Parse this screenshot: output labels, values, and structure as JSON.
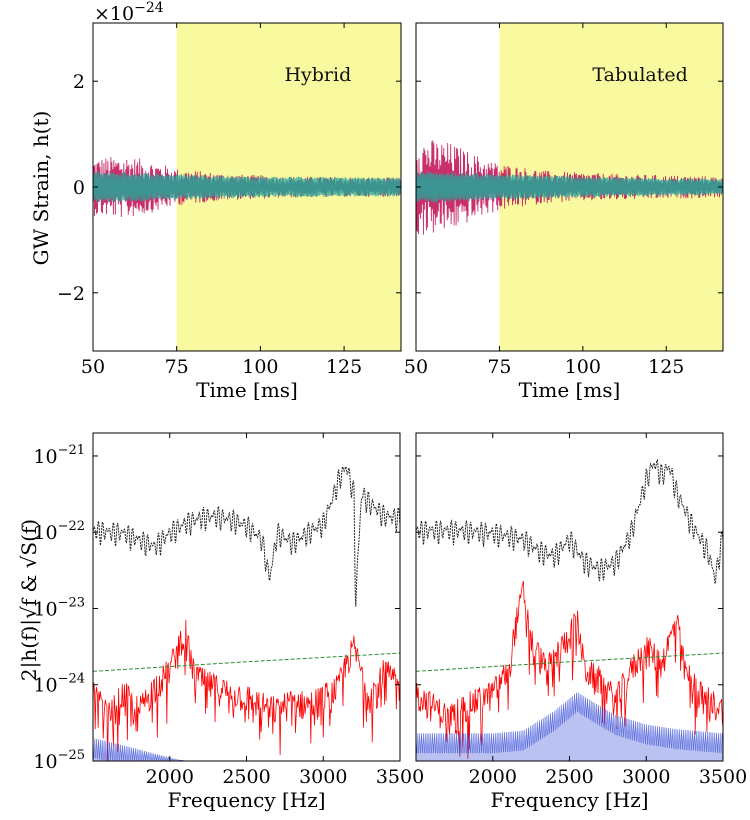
{
  "chart_data": [
    {
      "type": "line",
      "panel": "top-left",
      "annotation": "Hybrid",
      "xlabel": "Time [ms]",
      "ylabel": "GW Strain, h(t)",
      "scale_label": "×10",
      "scale_exponent": "−24",
      "xlim": [
        50,
        142
      ],
      "ylim": [
        -3.1,
        3.1
      ],
      "xticks": [
        {
          "value": 50,
          "label": "50"
        },
        {
          "value": 75,
          "label": "75"
        },
        {
          "value": 100,
          "label": "100"
        },
        {
          "value": 125,
          "label": "125"
        }
      ],
      "yticks": [
        {
          "value": -2,
          "label": "−2"
        },
        {
          "value": 0,
          "label": "0"
        },
        {
          "value": 2,
          "label": "2"
        }
      ],
      "shaded_region": {
        "x_start": 75,
        "x_end": 142,
        "color": "#f9f9a0"
      },
      "series": [
        {
          "color": "#c2185b",
          "envelope": [
            [
              50,
              0.55
            ],
            [
              60,
              0.6
            ],
            [
              70,
              0.45
            ],
            [
              75,
              0.35
            ],
            [
              90,
              0.25
            ],
            [
              110,
              0.2
            ],
            [
              142,
              0.18
            ]
          ]
        },
        {
          "color": "#26a69a",
          "envelope": [
            [
              50,
              0.3
            ],
            [
              75,
              0.25
            ],
            [
              100,
              0.2
            ],
            [
              142,
              0.18
            ]
          ]
        }
      ]
    },
    {
      "type": "line",
      "panel": "top-right",
      "annotation": "Tabulated",
      "xlabel": "Time [ms]",
      "xlim": [
        50,
        142
      ],
      "ylim": [
        -3.1,
        3.1
      ],
      "xticks": [
        {
          "value": 50,
          "label": "50"
        },
        {
          "value": 75,
          "label": "75"
        },
        {
          "value": 100,
          "label": "100"
        },
        {
          "value": 125,
          "label": "125"
        }
      ],
      "shaded_region": {
        "x_start": 75,
        "x_end": 142,
        "color": "#f9f9a0"
      },
      "series": [
        {
          "color": "#c2185b",
          "envelope": [
            [
              50,
              0.95
            ],
            [
              60,
              0.85
            ],
            [
              70,
              0.55
            ],
            [
              75,
              0.45
            ],
            [
              90,
              0.3
            ],
            [
              110,
              0.25
            ],
            [
              142,
              0.2
            ]
          ]
        },
        {
          "color": "#26a69a",
          "envelope": [
            [
              50,
              0.3
            ],
            [
              75,
              0.25
            ],
            [
              100,
              0.2
            ],
            [
              142,
              0.15
            ]
          ]
        }
      ]
    },
    {
      "type": "line",
      "panel": "bottom-left",
      "xlabel": "Frequency [Hz]",
      "ylabel": "2|h(f)|√f & √S(f)",
      "yscale": "log",
      "xlim": [
        1500,
        3500
      ],
      "ylim": [
        1e-25,
        2e-21
      ],
      "xticks": [
        {
          "value": 2000,
          "label": "2000"
        },
        {
          "value": 2500,
          "label": "2500"
        },
        {
          "value": 3000,
          "label": "3000"
        },
        {
          "value": 3500,
          "label": "3500"
        }
      ],
      "yticks": [
        {
          "value": 1e-25,
          "label": "10",
          "exp": "−25"
        },
        {
          "value": 1e-24,
          "label": "10",
          "exp": "−24"
        },
        {
          "value": 1e-23,
          "label": "10",
          "exp": "−23"
        },
        {
          "value": 1e-22,
          "label": "10",
          "exp": "−22"
        },
        {
          "value": 1e-21,
          "label": "10",
          "exp": "−21"
        }
      ],
      "series": [
        {
          "style": "dotted",
          "color": "#222222",
          "points": [
            [
              1500,
              1.3e-22
            ],
            [
              1700,
              1.2e-22
            ],
            [
              1900,
              8e-23
            ],
            [
              2000,
              1.2e-22
            ],
            [
              2100,
              1.6e-22
            ],
            [
              2200,
              1.9e-22
            ],
            [
              2300,
              2e-22
            ],
            [
              2400,
              1.8e-22
            ],
            [
              2500,
              1.5e-22
            ],
            [
              2600,
              1e-22
            ],
            [
              2650,
              3e-23
            ],
            [
              2700,
              1.2e-22
            ],
            [
              2800,
              9e-23
            ],
            [
              2900,
              1.2e-22
            ],
            [
              3000,
              1.6e-22
            ],
            [
              3050,
              3e-22
            ],
            [
              3100,
              6e-22
            ],
            [
              3150,
              9e-22
            ],
            [
              3200,
              4e-22
            ],
            [
              3210,
              1.5e-23
            ],
            [
              3250,
              4e-22
            ],
            [
              3300,
              3e-22
            ],
            [
              3400,
              2e-22
            ],
            [
              3500,
              1.9e-22
            ]
          ]
        },
        {
          "style": "solid",
          "color": "#ff0000",
          "points": [
            [
              1500,
              1e-24
            ],
            [
              1600,
              5e-25
            ],
            [
              1700,
              1e-24
            ],
            [
              1800,
              6e-25
            ],
            [
              1900,
              1.2e-24
            ],
            [
              2000,
              2e-24
            ],
            [
              2050,
              4e-24
            ],
            [
              2100,
              7e-24
            ],
            [
              2150,
              2e-24
            ],
            [
              2200,
              1.5e-24
            ],
            [
              2300,
              1.2e-24
            ],
            [
              2400,
              1e-24
            ],
            [
              2500,
              9e-25
            ],
            [
              2600,
              7e-25
            ],
            [
              2700,
              6e-25
            ],
            [
              2800,
              8e-25
            ],
            [
              2900,
              7e-25
            ],
            [
              3000,
              9e-25
            ],
            [
              3100,
              1.2e-24
            ],
            [
              3150,
              2.5e-24
            ],
            [
              3200,
              4e-24
            ],
            [
              3250,
              1.8e-24
            ],
            [
              3300,
              9e-25
            ],
            [
              3400,
              2e-24
            ],
            [
              3500,
              1.2e-24
            ]
          ]
        },
        {
          "style": "dashed",
          "color": "#2e8b2e",
          "points": [
            [
              1500,
              1.5e-24
            ],
            [
              2500,
              2e-24
            ],
            [
              3500,
              2.6e-24
            ]
          ]
        },
        {
          "style": "fill",
          "color": "#3a4fd8",
          "points": [
            [
              1500,
              2e-25
            ],
            [
              1700,
              1.6e-25
            ],
            [
              1900,
              1.25e-25
            ],
            [
              2050,
              1.05e-25
            ],
            [
              2100,
              1e-25
            ]
          ]
        }
      ]
    },
    {
      "type": "line",
      "panel": "bottom-right",
      "xlabel": "Frequency [Hz]",
      "yscale": "log",
      "xlim": [
        1500,
        3500
      ],
      "ylim": [
        1e-25,
        2e-21
      ],
      "xticks": [
        {
          "value": 2000,
          "label": "2000"
        },
        {
          "value": 2500,
          "label": "2500"
        },
        {
          "value": 3000,
          "label": "3000"
        },
        {
          "value": 3500,
          "label": "3500"
        }
      ],
      "series": [
        {
          "style": "dotted",
          "color": "#222222",
          "points": [
            [
              1500,
              1.3e-22
            ],
            [
              1800,
              1.3e-22
            ],
            [
              2000,
              1.2e-22
            ],
            [
              2200,
              1e-22
            ],
            [
              2300,
              7e-23
            ],
            [
              2400,
              6e-23
            ],
            [
              2500,
              1e-22
            ],
            [
              2600,
              5e-23
            ],
            [
              2700,
              4e-23
            ],
            [
              2800,
              5e-23
            ],
            [
              2900,
              1.2e-22
            ],
            [
              3000,
              6e-22
            ],
            [
              3050,
              1e-21
            ],
            [
              3100,
              7e-22
            ],
            [
              3150,
              9e-22
            ],
            [
              3200,
              4e-22
            ],
            [
              3300,
              1.5e-22
            ],
            [
              3400,
              7e-23
            ],
            [
              3450,
              3e-23
            ],
            [
              3500,
              1.2e-22
            ]
          ]
        },
        {
          "style": "solid",
          "color": "#ff0000",
          "points": [
            [
              1500,
              1e-24
            ],
            [
              1700,
              5e-25
            ],
            [
              1900,
              8e-25
            ],
            [
              2000,
              1e-24
            ],
            [
              2100,
              2e-24
            ],
            [
              2150,
              8e-24
            ],
            [
              2200,
              2.2e-23
            ],
            [
              2250,
              5e-24
            ],
            [
              2350,
              2e-24
            ],
            [
              2450,
              4e-24
            ],
            [
              2550,
              9e-24
            ],
            [
              2600,
              2e-24
            ],
            [
              2700,
              1.5e-24
            ],
            [
              2800,
              8e-25
            ],
            [
              2900,
              2e-24
            ],
            [
              3000,
              4e-24
            ],
            [
              3100,
              2.5e-24
            ],
            [
              3200,
              9e-24
            ],
            [
              3250,
              2e-24
            ],
            [
              3350,
              1e-24
            ],
            [
              3500,
              6e-25
            ]
          ]
        },
        {
          "style": "dashed",
          "color": "#2e8b2e",
          "points": [
            [
              1500,
              1.5e-24
            ],
            [
              2500,
              2e-24
            ],
            [
              3500,
              2.6e-24
            ]
          ]
        },
        {
          "style": "fill",
          "color": "#3a4fd8",
          "points": [
            [
              1500,
              2.3e-25
            ],
            [
              2000,
              2.3e-25
            ],
            [
              2200,
              2.5e-25
            ],
            [
              2400,
              4.5e-25
            ],
            [
              2550,
              8e-25
            ],
            [
              2650,
              6e-25
            ],
            [
              2800,
              4e-25
            ],
            [
              3000,
              3e-25
            ],
            [
              3200,
              2.6e-25
            ],
            [
              3500,
              2.3e-25
            ]
          ]
        }
      ]
    }
  ]
}
